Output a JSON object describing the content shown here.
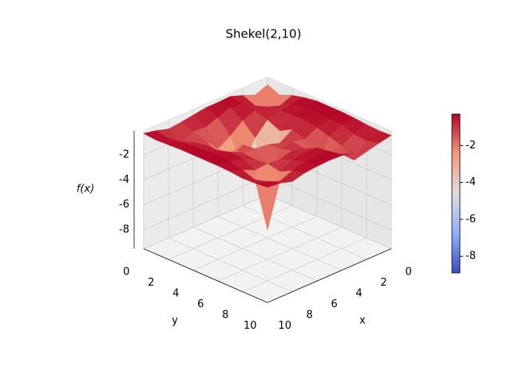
{
  "chart_data": {
    "type": "surface3d",
    "title": "Shekel(2,10)",
    "xlabel": "x",
    "ylabel": "y",
    "zlabel": "f(x)",
    "colormap": "coolwarm",
    "x": [
      0,
      1,
      2,
      3,
      4,
      5,
      6,
      7,
      8,
      9,
      10
    ],
    "y": [
      0,
      1,
      2,
      3,
      4,
      5,
      6,
      7,
      8,
      9,
      10
    ],
    "z": [
      [
        -0.7,
        -1.1,
        -0.7,
        -0.45,
        -0.3,
        -0.3,
        -0.3,
        -0.35,
        -0.45,
        -0.5,
        -0.45
      ],
      [
        -1.1,
        -5.3,
        -1.1,
        -0.5,
        -0.4,
        -0.35,
        -0.45,
        -0.5,
        -0.8,
        -0.9,
        -0.65
      ],
      [
        -0.7,
        -1.1,
        -0.75,
        -0.65,
        -0.55,
        -0.5,
        -0.7,
        -1.0,
        -1.3,
        -2.0,
        -0.9
      ],
      [
        -0.35,
        -0.5,
        -0.65,
        -0.95,
        -1.4,
        -0.85,
        -1.2,
        -2.8,
        -1.3,
        -1.1,
        -0.6
      ],
      [
        -0.4,
        -0.4,
        -1.0,
        -2.0,
        -8.9,
        -1.5,
        -0.95,
        -1.1,
        -0.6,
        -0.45,
        -0.35
      ],
      [
        -0.4,
        -0.75,
        -1.8,
        -3.9,
        -2.0,
        -1.2,
        -1.1,
        -0.8,
        -0.55,
        -0.4,
        -0.3
      ],
      [
        -0.55,
        -1.1,
        -2.4,
        -2.3,
        -1.2,
        -1.1,
        -2.9,
        -1.1,
        -0.7,
        -0.45,
        -0.35
      ],
      [
        -0.7,
        -1.0,
        -1.3,
        -1.9,
        -2.0,
        -1.0,
        -1.1,
        -1.0,
        -1.2,
        -0.7,
        -0.45
      ],
      [
        -0.8,
        -1.7,
        -1.0,
        -0.8,
        -0.8,
        -0.5,
        -0.6,
        -1.1,
        -5.4,
        -1.1,
        -0.7
      ],
      [
        -0.5,
        -0.7,
        -0.55,
        -0.45,
        -0.4,
        -0.35,
        -0.4,
        -0.65,
        -1.0,
        -0.7,
        -0.4
      ],
      [
        -0.3,
        -0.4,
        -0.35,
        -0.3,
        -0.3,
        -0.3,
        -0.3,
        -0.35,
        -0.45,
        -0.4,
        -0.3
      ]
    ],
    "xlim": [
      0,
      10
    ],
    "ylim": [
      0,
      10
    ],
    "zlim": [
      -9.5,
      -0.1
    ],
    "xticks": [
      0,
      2,
      4,
      6,
      8,
      10
    ],
    "yticks": [
      0,
      2,
      4,
      6,
      8,
      10
    ],
    "zticks": [
      -8,
      -6,
      -4,
      -2
    ],
    "colorbar_ticks": [
      -8,
      -6,
      -4,
      -2
    ],
    "grid": true
  }
}
